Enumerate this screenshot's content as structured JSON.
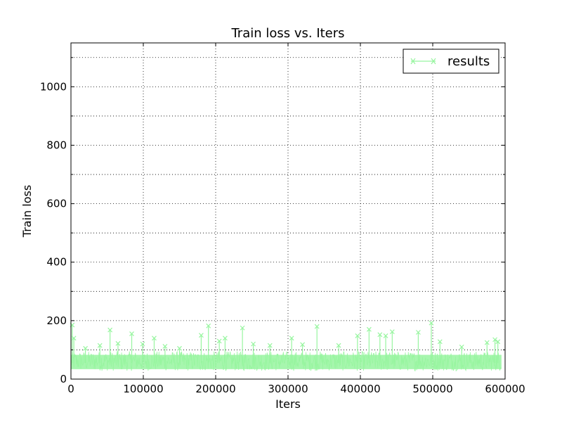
{
  "chart_data": {
    "type": "line",
    "title": "Train loss  vs. Iters",
    "xlabel": "Iters",
    "ylabel": "Train loss",
    "xlim": [
      0,
      600000
    ],
    "ylim": [
      0,
      1150
    ],
    "xticks": [
      0,
      100000,
      200000,
      300000,
      400000,
      500000,
      600000
    ],
    "yticks": [
      0,
      200,
      400,
      600,
      800,
      1000
    ],
    "ygrid_minor": [
      100,
      300,
      500,
      700,
      900,
      1100
    ],
    "grid": true,
    "legend_position": "top-right",
    "series": [
      {
        "name": "results",
        "color": "#98f5a0",
        "marker": "x",
        "band": {
          "x_start": 0,
          "x_end": 595000,
          "low": 28,
          "high": 95,
          "center": 55
        },
        "spikes": [
          [
            1800,
            185
          ],
          [
            4000,
            140
          ],
          [
            20000,
            105
          ],
          [
            40000,
            115
          ],
          [
            54000,
            168
          ],
          [
            65000,
            122
          ],
          [
            84000,
            155
          ],
          [
            99000,
            120
          ],
          [
            115000,
            140
          ],
          [
            130000,
            112
          ],
          [
            150000,
            105
          ],
          [
            180000,
            150
          ],
          [
            190000,
            182
          ],
          [
            205000,
            130
          ],
          [
            213000,
            140
          ],
          [
            237000,
            175
          ],
          [
            252000,
            120
          ],
          [
            275000,
            115
          ],
          [
            305000,
            140
          ],
          [
            320000,
            118
          ],
          [
            340000,
            180
          ],
          [
            370000,
            115
          ],
          [
            396000,
            148
          ],
          [
            412000,
            170
          ],
          [
            427000,
            152
          ],
          [
            435000,
            148
          ],
          [
            444000,
            162
          ],
          [
            480000,
            160
          ],
          [
            498000,
            192
          ],
          [
            510000,
            128
          ],
          [
            540000,
            110
          ],
          [
            575000,
            125
          ],
          [
            586000,
            135
          ],
          [
            590000,
            128
          ]
        ]
      }
    ]
  }
}
